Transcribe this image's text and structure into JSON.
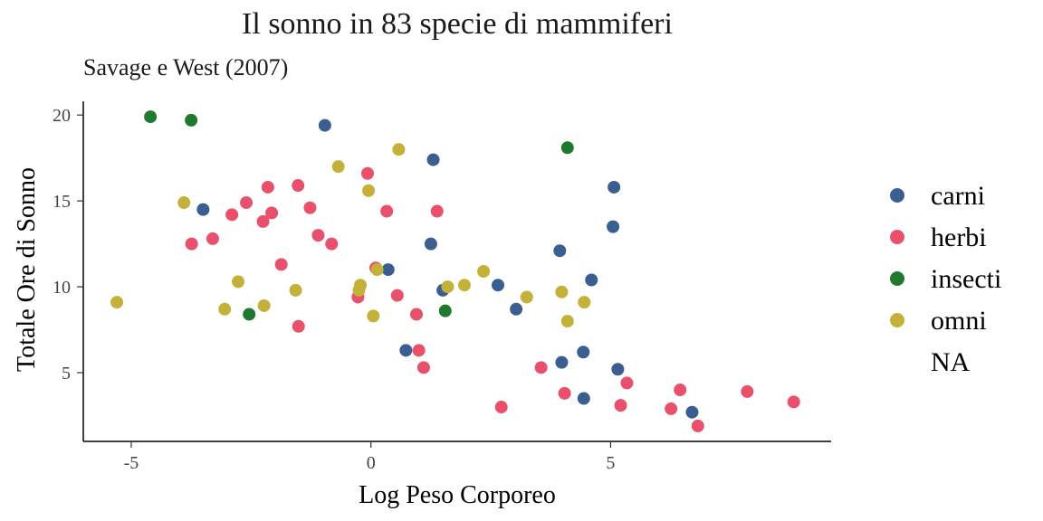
{
  "chart_data": {
    "type": "scatter",
    "title": "Il sonno in 83 specie di mammiferi",
    "subtitle": "Savage e West (2007)",
    "xlabel": "Log Peso Corporeo",
    "ylabel": "Totale Ore di Sonno",
    "xlim": [
      -6.0,
      9.6
    ],
    "ylim": [
      1.0,
      20.8
    ],
    "xticks": [
      -5,
      0,
      5
    ],
    "xtick_labels": [
      "-5",
      "0",
      "5"
    ],
    "yticks": [
      5,
      10,
      15,
      20
    ],
    "ytick_labels": [
      "5",
      "10",
      "15",
      "20"
    ],
    "grid": false,
    "legend_position": "right",
    "legend": [
      {
        "label": "carni",
        "color": "#3b5e91"
      },
      {
        "label": "herbi",
        "color": "#e8506b"
      },
      {
        "label": "insecti",
        "color": "#1f7a2e"
      },
      {
        "label": "omni",
        "color": "#c4b13a"
      },
      {
        "label": "NA",
        "color": null
      }
    ],
    "series": [
      {
        "name": "carni",
        "color": "#3b5e91",
        "points": [
          [
            -3.5,
            14.5
          ],
          [
            -0.96,
            19.4
          ],
          [
            1.3,
            17.4
          ],
          [
            1.25,
            12.5
          ],
          [
            0.36,
            11.0
          ],
          [
            1.5,
            9.8
          ],
          [
            0.73,
            6.3
          ],
          [
            2.65,
            10.1
          ],
          [
            3.03,
            8.7
          ],
          [
            3.94,
            12.1
          ],
          [
            5.07,
            15.8
          ],
          [
            5.05,
            13.5
          ],
          [
            4.6,
            10.4
          ],
          [
            3.98,
            5.6
          ],
          [
            4.43,
            6.2
          ],
          [
            5.15,
            5.2
          ],
          [
            4.44,
            3.5
          ],
          [
            6.7,
            2.7
          ]
        ]
      },
      {
        "name": "herbi",
        "color": "#e8506b",
        "points": [
          [
            -3.74,
            12.5
          ],
          [
            -3.3,
            12.8
          ],
          [
            -2.9,
            14.2
          ],
          [
            -2.6,
            14.9
          ],
          [
            -2.15,
            15.8
          ],
          [
            -2.07,
            14.3
          ],
          [
            -2.25,
            13.8
          ],
          [
            -1.87,
            11.3
          ],
          [
            -1.52,
            15.9
          ],
          [
            -1.27,
            14.6
          ],
          [
            -1.1,
            13.0
          ],
          [
            -0.82,
            12.5
          ],
          [
            -1.51,
            7.7
          ],
          [
            -0.27,
            9.4
          ],
          [
            -0.07,
            16.6
          ],
          [
            0.33,
            14.4
          ],
          [
            0.1,
            11.1
          ],
          [
            0.55,
            9.5
          ],
          [
            0.95,
            8.4
          ],
          [
            1.0,
            6.3
          ],
          [
            1.1,
            5.3
          ],
          [
            1.38,
            14.4
          ],
          [
            2.72,
            3.0
          ],
          [
            3.55,
            5.3
          ],
          [
            4.04,
            3.8
          ],
          [
            5.21,
            3.1
          ],
          [
            5.34,
            4.4
          ],
          [
            6.26,
            2.9
          ],
          [
            6.45,
            4.0
          ],
          [
            6.82,
            1.9
          ],
          [
            7.85,
            3.9
          ],
          [
            8.82,
            3.3
          ]
        ]
      },
      {
        "name": "insecti",
        "color": "#1f7a2e",
        "points": [
          [
            -4.6,
            19.9
          ],
          [
            -3.75,
            19.7
          ],
          [
            -2.54,
            8.4
          ],
          [
            1.55,
            8.6
          ],
          [
            4.1,
            18.1
          ]
        ]
      },
      {
        "name": "omni",
        "color": "#c4b13a",
        "points": [
          [
            -5.3,
            9.1
          ],
          [
            -3.9,
            14.9
          ],
          [
            -3.05,
            8.7
          ],
          [
            -2.77,
            10.3
          ],
          [
            -2.23,
            8.9
          ],
          [
            -1.57,
            9.8
          ],
          [
            -0.68,
            17.0
          ],
          [
            -0.22,
            10.1
          ],
          [
            -0.25,
            9.8
          ],
          [
            -0.05,
            15.6
          ],
          [
            0.05,
            8.3
          ],
          [
            0.13,
            11.0
          ],
          [
            0.58,
            18.0
          ],
          [
            1.6,
            10.0
          ],
          [
            1.95,
            10.1
          ],
          [
            2.35,
            10.9
          ],
          [
            3.25,
            9.4
          ],
          [
            3.98,
            9.7
          ],
          [
            4.1,
            8.0
          ],
          [
            4.45,
            9.1
          ]
        ]
      }
    ]
  }
}
